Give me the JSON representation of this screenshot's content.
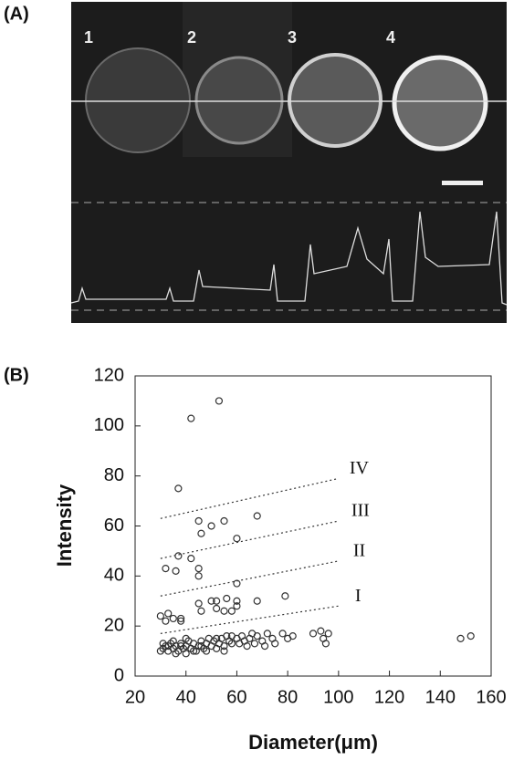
{
  "panel_a": {
    "label": "(A)",
    "cell_labels": [
      "1",
      "2",
      "3",
      "4"
    ]
  },
  "chart_data": {
    "type": "scatter",
    "panel_label": "(B)",
    "x_label": "Diameter(μm)",
    "y_label": "Intensity",
    "xlim": [
      20,
      160
    ],
    "xticks": [
      20,
      40,
      60,
      80,
      100,
      120,
      140,
      160
    ],
    "ylim": [
      0,
      120
    ],
    "yticks": [
      0,
      20,
      40,
      60,
      80,
      100,
      120
    ],
    "marker_color": "#333333",
    "x": [
      42,
      53,
      37,
      45,
      50,
      55,
      68,
      46,
      60,
      37,
      42,
      32,
      36,
      45,
      45,
      60,
      60,
      60,
      50,
      52,
      52,
      56,
      55,
      58,
      68,
      79,
      45,
      46,
      38,
      38,
      30,
      32,
      33,
      35,
      30,
      31,
      32,
      33,
      34,
      35,
      36,
      36,
      37,
      38,
      39,
      40,
      40,
      41,
      42,
      43,
      44,
      45,
      46,
      47,
      48,
      49,
      50,
      51,
      52,
      53,
      54,
      55,
      56,
      57,
      58,
      60,
      61,
      62,
      63,
      64,
      65,
      66,
      67,
      68,
      70,
      71,
      72,
      74,
      75,
      78,
      80,
      82,
      90,
      93,
      94,
      95,
      96,
      148,
      152,
      31,
      33,
      35,
      38,
      40,
      43,
      46,
      48,
      52,
      55,
      58
    ],
    "y": [
      103,
      110,
      75,
      62,
      60,
      62,
      64,
      57,
      55,
      48,
      47,
      43,
      42,
      43,
      40,
      37,
      28,
      30,
      30,
      30,
      27,
      31,
      26,
      26,
      30,
      32,
      29,
      26,
      23,
      22,
      24,
      22,
      25,
      23,
      10,
      11,
      12,
      10,
      13,
      11,
      9,
      12,
      10,
      13,
      11,
      12,
      9,
      14,
      11,
      13,
      10,
      12,
      14,
      11,
      13,
      15,
      12,
      14,
      11,
      13,
      15,
      12,
      16,
      14,
      13,
      15,
      13,
      16,
      14,
      12,
      15,
      17,
      13,
      16,
      14,
      12,
      17,
      15,
      13,
      17,
      15,
      16,
      17,
      18,
      15,
      13,
      17,
      15,
      16,
      13,
      12,
      14,
      12,
      15,
      10,
      12,
      10,
      15,
      10,
      16
    ],
    "boundaries": [
      {
        "label": "I",
        "x": [
          30,
          100
        ],
        "y": [
          17,
          28
        ]
      },
      {
        "label": "II",
        "x": [
          30,
          100
        ],
        "y": [
          32,
          46
        ]
      },
      {
        "label": "III",
        "x": [
          30,
          100
        ],
        "y": [
          47,
          62
        ]
      },
      {
        "label": "IV",
        "x": [
          30,
          100
        ],
        "y": [
          63,
          79
        ]
      }
    ]
  }
}
